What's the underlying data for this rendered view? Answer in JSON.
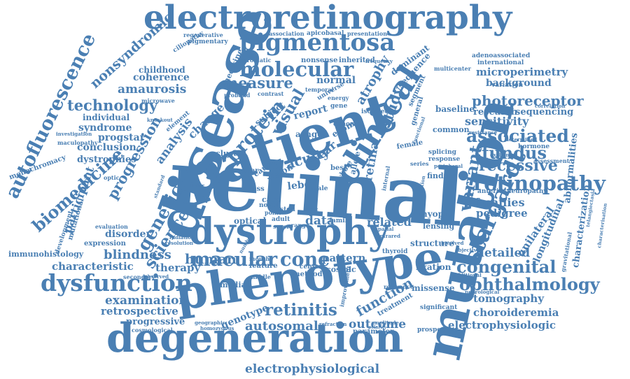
{
  "cloud": {
    "color": "#4a7fb3",
    "words": [
      "electroretinography",
      "retinal",
      "patient",
      "disease",
      "mutation",
      "phenotype",
      "degeneration",
      "dystrophy",
      "pigmentosa",
      "molecular",
      "clinical",
      "autofluorescence",
      "biomedicine",
      "dysfunction",
      "ophthalmology",
      "retinopathy",
      "stargardt",
      "congenital",
      "associated",
      "fundus",
      "recessive",
      "variant",
      "photoreceptor",
      "macular",
      "genetic",
      "science",
      "technology",
      "nonsyndromic",
      "amaurosis",
      "protein",
      "measure",
      "visual",
      "study",
      "atrophy",
      "retina",
      "acuity",
      "cone",
      "human",
      "therapy",
      "blindness",
      "progression",
      "analysis",
      "retinitis",
      "autosomal",
      "outcome",
      "function",
      "examination",
      "retrospective",
      "progressive",
      "families",
      "pedigree",
      "detailed",
      "sensitivity",
      "tomography",
      "choroideremia",
      "electrophysiologic",
      "electrophysiological",
      "microperimetry",
      "background",
      "research",
      "sequencing",
      "baseline",
      "common",
      "characteristic",
      "conclusion",
      "dystrophies",
      "syndrome",
      "progstar",
      "coherence",
      "childhood",
      "individual",
      "abnormalities",
      "characterization",
      "longitudinal",
      "unilateral",
      "myopia",
      "lensing",
      "structure",
      "fixation",
      "missense",
      "significant",
      "prospective",
      "pattern",
      "related",
      "data",
      "cosmic",
      "optical",
      "expression",
      "disorder",
      "participant",
      "immunohistology",
      "monochromacy",
      "development",
      "mutational",
      "evaluation",
      "median",
      "method",
      "central",
      "normal",
      "report",
      "medicine",
      "subject",
      "leber",
      "genotype",
      "family",
      "adult",
      "severe",
      "range",
      "stgd",
      "point",
      "case",
      "loss",
      "cluster",
      "change",
      "element",
      "treatment",
      "parameter",
      "amplitude",
      "refraction",
      "geographic",
      "homozygous",
      "cosmological",
      "secondary",
      "observed",
      "radiation",
      "resolution",
      "nonsense",
      "inherited",
      "association",
      "apicobasal",
      "presentation",
      "regenerative",
      "pigmentary",
      "ciliopathy",
      "dominant",
      "sequence",
      "segment",
      "general",
      "variation",
      "multicenter",
      "adenoassociated",
      "international",
      "isolated",
      "proband",
      "contrast",
      "chromatic",
      "gene",
      "frequency",
      "optic",
      "microwave",
      "standard",
      "cellular",
      "anterior",
      "neuropathy",
      "gravitational",
      "assessment",
      "hormone",
      "determined",
      "exchange",
      "splicing",
      "response",
      "correlation",
      "finding",
      "thyroid",
      "relevance",
      "additional",
      "neurological",
      "involved",
      "internal",
      "location",
      "objective",
      "telangiectasia",
      "characterisation",
      "maculopathy",
      "investigation",
      "knockout",
      "best",
      "male",
      "female",
      "whole",
      "exome",
      "allele",
      "vision",
      "cause",
      "ocular",
      "year",
      "novel",
      "month",
      "feature",
      "middle",
      "number",
      "spatial",
      "infrared",
      "short",
      "improvement",
      "polarity",
      "energy",
      "temporal",
      "universe",
      "cohort",
      "arhgef",
      "series",
      "functional",
      "resistance",
      "peripheral"
    ]
  }
}
